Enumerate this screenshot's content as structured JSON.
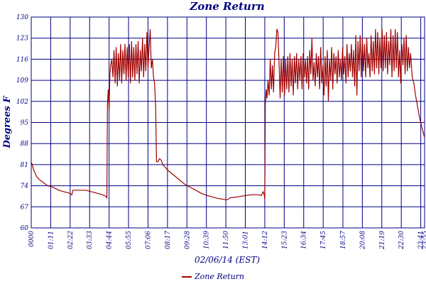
{
  "chart_data": {
    "type": "line",
    "title": "Zone Return",
    "xlabel": "02/06/14 (EST)",
    "ylabel": "Degrees F",
    "xlim": [
      0,
      1435
    ],
    "ylim": [
      60,
      130
    ],
    "yticks": [
      60,
      67,
      74,
      81,
      88,
      95,
      102,
      109,
      116,
      123,
      130
    ],
    "xticks": [
      {
        "value": 0,
        "label": "0000"
      },
      {
        "value": 71,
        "label": "01:11"
      },
      {
        "value": 142,
        "label": "02:22"
      },
      {
        "value": 213,
        "label": "03:33"
      },
      {
        "value": 284,
        "label": "04:44"
      },
      {
        "value": 355,
        "label": "05:55"
      },
      {
        "value": 426,
        "label": "07:06"
      },
      {
        "value": 497,
        "label": "08:17"
      },
      {
        "value": 568,
        "label": "09:28"
      },
      {
        "value": 639,
        "label": "10:39"
      },
      {
        "value": 710,
        "label": "11:50"
      },
      {
        "value": 781,
        "label": "13:01"
      },
      {
        "value": 852,
        "label": "14:12"
      },
      {
        "value": 923,
        "label": "15:23"
      },
      {
        "value": 994,
        "label": "16:34"
      },
      {
        "value": 1065,
        "label": "17:45"
      },
      {
        "value": 1137,
        "label": "18:57"
      },
      {
        "value": 1208,
        "label": "20:08"
      },
      {
        "value": 1279,
        "label": "21:19"
      },
      {
        "value": 1350,
        "label": "22:30"
      },
      {
        "value": 1421,
        "label": "23:41"
      },
      {
        "value": 1435,
        "label": "23:55"
      }
    ],
    "grid": true,
    "legend": "bottom",
    "x": [
      0,
      10,
      20,
      30,
      45,
      60,
      80,
      100,
      120,
      140,
      148,
      152,
      160,
      180,
      200,
      220,
      240,
      260,
      272,
      276,
      278,
      281,
      284,
      287,
      290,
      294,
      298,
      302,
      306,
      310,
      314,
      318,
      322,
      326,
      330,
      334,
      338,
      342,
      346,
      350,
      354,
      358,
      362,
      366,
      370,
      374,
      378,
      382,
      386,
      390,
      394,
      398,
      402,
      406,
      410,
      414,
      418,
      422,
      426,
      430,
      434,
      438,
      442,
      446,
      450,
      454,
      457,
      462,
      468,
      474,
      480,
      490,
      500,
      520,
      540,
      560,
      580,
      600,
      620,
      640,
      660,
      680,
      700,
      715,
      725,
      745,
      765,
      785,
      805,
      825,
      840,
      846,
      850,
      852,
      854,
      857,
      860,
      864,
      868,
      872,
      876,
      880,
      884,
      888,
      892,
      896,
      900,
      904,
      908,
      912,
      916,
      920,
      924,
      928,
      932,
      936,
      940,
      944,
      948,
      952,
      956,
      960,
      964,
      968,
      972,
      976,
      980,
      984,
      988,
      992,
      996,
      1000,
      1004,
      1008,
      1012,
      1016,
      1020,
      1024,
      1028,
      1032,
      1036,
      1040,
      1044,
      1048,
      1052,
      1056,
      1060,
      1064,
      1068,
      1072,
      1076,
      1080,
      1084,
      1088,
      1092,
      1096,
      1100,
      1104,
      1108,
      1112,
      1116,
      1120,
      1124,
      1128,
      1132,
      1136,
      1140,
      1144,
      1148,
      1152,
      1156,
      1160,
      1164,
      1168,
      1172,
      1176,
      1180,
      1184,
      1188,
      1192,
      1196,
      1200,
      1204,
      1208,
      1212,
      1216,
      1220,
      1224,
      1228,
      1232,
      1236,
      1240,
      1244,
      1248,
      1252,
      1256,
      1260,
      1264,
      1268,
      1272,
      1276,
      1280,
      1284,
      1288,
      1292,
      1296,
      1300,
      1304,
      1308,
      1312,
      1316,
      1320,
      1324,
      1328,
      1332,
      1336,
      1340,
      1344,
      1348,
      1352,
      1356,
      1360,
      1364,
      1368,
      1372,
      1376,
      1380,
      1384,
      1390,
      1396,
      1402,
      1410,
      1418,
      1426,
      1435
    ],
    "series": [
      {
        "name": "Zone Return",
        "color": "#a00000",
        "values": [
          82,
          79,
          77,
          76,
          75,
          74,
          73.5,
          72.5,
          72,
          71.5,
          71,
          72.5,
          72.5,
          72.5,
          72.5,
          72,
          71.5,
          71,
          70.5,
          70,
          101,
          106,
          99,
          111,
          114,
          116,
          110,
          119,
          108,
          120,
          107,
          118,
          109,
          121,
          108,
          119,
          111,
          121,
          109,
          120,
          110,
          121,
          108,
          122,
          110,
          120,
          109,
          121,
          111,
          122,
          108,
          119,
          112,
          123,
          110,
          121,
          112,
          125,
          113,
          120,
          126,
          113,
          116,
          110,
          108,
          100,
          82,
          82,
          83,
          82.5,
          81,
          80,
          79,
          77.5,
          76,
          74.5,
          73.5,
          72.5,
          71.5,
          70.8,
          70.3,
          69.8,
          69.5,
          69.3,
          70,
          70.2,
          70.5,
          70.8,
          71,
          71,
          70.8,
          72,
          71,
          69.5,
          101,
          106,
          103,
          109,
          104,
          116,
          106,
          114,
          105,
          118,
          120,
          126,
          125,
          115,
          103,
          116,
          105,
          117,
          104,
          116,
          106,
          117,
          105,
          118,
          107,
          116,
          104,
          117,
          108,
          118,
          106,
          116,
          109,
          117,
          106,
          118,
          110,
          116,
          108,
          117,
          106,
          119,
          111,
          123,
          109,
          115,
          107,
          118,
          110,
          117,
          106,
          120,
          108,
          114,
          104,
          117,
          107,
          119,
          102,
          116,
          109,
          120,
          106,
          118,
          111,
          117,
          108,
          119,
          110,
          116,
          109,
          120,
          111,
          117,
          108,
          121,
          110,
          118,
          112,
          121,
          110,
          119,
          107,
          124,
          104,
          122,
          112,
          124,
          110,
          123,
          112,
          121,
          110,
          123,
          113,
          118,
          110,
          124,
          112,
          122,
          111,
          126,
          113,
          125,
          111,
          123,
          113,
          126,
          112,
          124,
          113,
          125,
          111,
          122,
          114,
          126,
          110,
          124,
          112,
          126,
          113,
          125,
          110,
          119,
          108,
          121,
          114,
          123,
          111,
          124,
          112,
          120,
          113,
          118,
          110,
          108,
          104,
          100,
          96,
          93,
          90
        ]
      }
    ]
  }
}
